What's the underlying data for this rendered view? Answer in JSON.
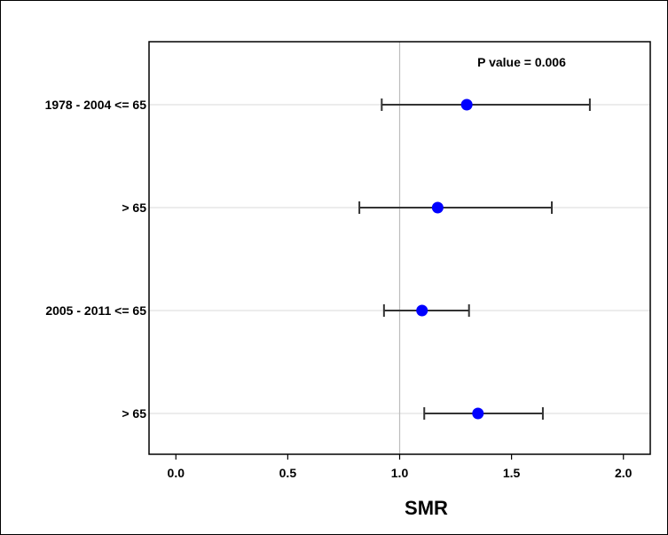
{
  "chart_data": {
    "type": "scatter",
    "subtype": "forest-plot",
    "title": "",
    "xlabel": "SMR",
    "ylabel": "",
    "xlim": [
      -0.12,
      2.12
    ],
    "xticks": [
      0.0,
      0.5,
      1.0,
      1.5,
      2.0
    ],
    "xtick_labels": [
      "0.0",
      "0.5",
      "1.0",
      "1.5",
      "2.0"
    ],
    "reference_line": 1.0,
    "grid": "horizontal",
    "marker_color": "#0000ff",
    "annotation": "P value = 0.006",
    "categories": [
      "1978 - 2004 <= 65",
      "> 65",
      "2005 - 2011 <= 65",
      "> 65"
    ],
    "points": [
      {
        "label": "1978 - 2004 <= 65",
        "estimate": 1.3,
        "lower": 0.92,
        "upper": 1.85
      },
      {
        "label": "> 65",
        "estimate": 1.17,
        "lower": 0.82,
        "upper": 1.68
      },
      {
        "label": "2005 - 2011 <= 65",
        "estimate": 1.1,
        "lower": 0.93,
        "upper": 1.31
      },
      {
        "label": "> 65",
        "estimate": 1.35,
        "lower": 1.11,
        "upper": 1.64
      }
    ]
  }
}
